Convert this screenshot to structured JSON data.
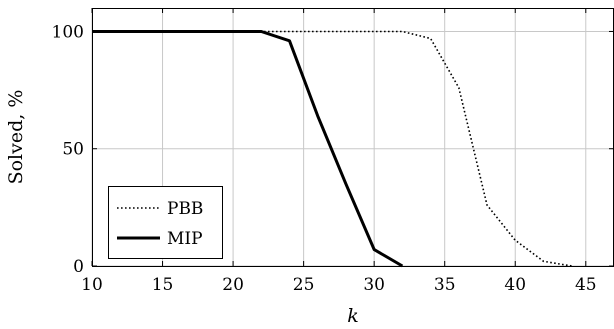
{
  "chart_data": {
    "type": "line",
    "title": "",
    "xlabel": "k",
    "ylabel": "Solved, %",
    "xlim": [
      10,
      47
    ],
    "ylim": [
      0,
      110
    ],
    "x_ticks": [
      10,
      15,
      20,
      25,
      30,
      35,
      40,
      45
    ],
    "y_ticks": [
      0,
      50,
      100
    ],
    "grid": true,
    "legend": {
      "placement": "bottom-left"
    },
    "series": [
      {
        "name": "PBB",
        "style": "dotted",
        "color": "#000000",
        "x": [
          10,
          12,
          14,
          16,
          18,
          20,
          22,
          24,
          26,
          28,
          30,
          32,
          34,
          36,
          38,
          40,
          42,
          44
        ],
        "y": [
          100,
          100,
          100,
          100,
          100,
          100,
          100,
          100,
          100,
          100,
          100,
          100,
          97,
          76,
          26,
          11,
          2,
          0
        ]
      },
      {
        "name": "MIP",
        "style": "solid",
        "color": "#000000",
        "x": [
          10,
          12,
          14,
          16,
          18,
          20,
          22,
          24,
          26,
          28,
          30,
          32
        ],
        "y": [
          100,
          100,
          100,
          100,
          100,
          100,
          100,
          96,
          64,
          35,
          7,
          0
        ]
      }
    ]
  }
}
